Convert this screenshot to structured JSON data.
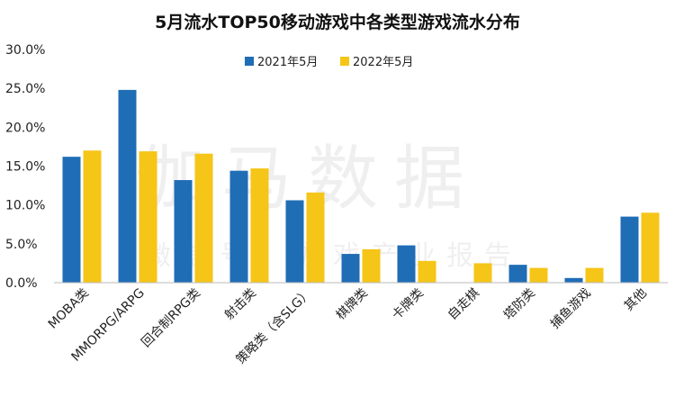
{
  "chart_data": {
    "type": "bar",
    "title": "5月流水TOP50移动游戏中各类型游戏流水分布",
    "categories": [
      "MOBA类",
      "MMORPG/ARPG",
      "回合制RPG类",
      "射击类",
      "策略类（含SLG）",
      "棋牌类",
      "卡牌类",
      "自走棋",
      "塔防类",
      "捕鱼游戏",
      "其他"
    ],
    "series": [
      {
        "name": "2021年5月",
        "color": "#1F6DB5",
        "values": [
          16.2,
          24.8,
          13.2,
          14.4,
          10.6,
          3.7,
          4.8,
          0.0,
          2.3,
          0.6,
          8.5
        ]
      },
      {
        "name": "2022年5月",
        "color": "#F5C518",
        "values": [
          17.0,
          16.9,
          16.6,
          14.7,
          11.6,
          4.3,
          2.8,
          2.5,
          1.9,
          1.9,
          9.0
        ]
      }
    ],
    "ylim": [
      0,
      30
    ],
    "yticks": [
      "0.0%",
      "5.0%",
      "10.0%",
      "15.0%",
      "20.0%",
      "25.0%",
      "30.0%"
    ],
    "xlabel": "",
    "ylabel": "",
    "legend_position": "top-center"
  },
  "watermark": {
    "line1": "伽马数据",
    "line2": "微信号：游戏产业报告"
  }
}
